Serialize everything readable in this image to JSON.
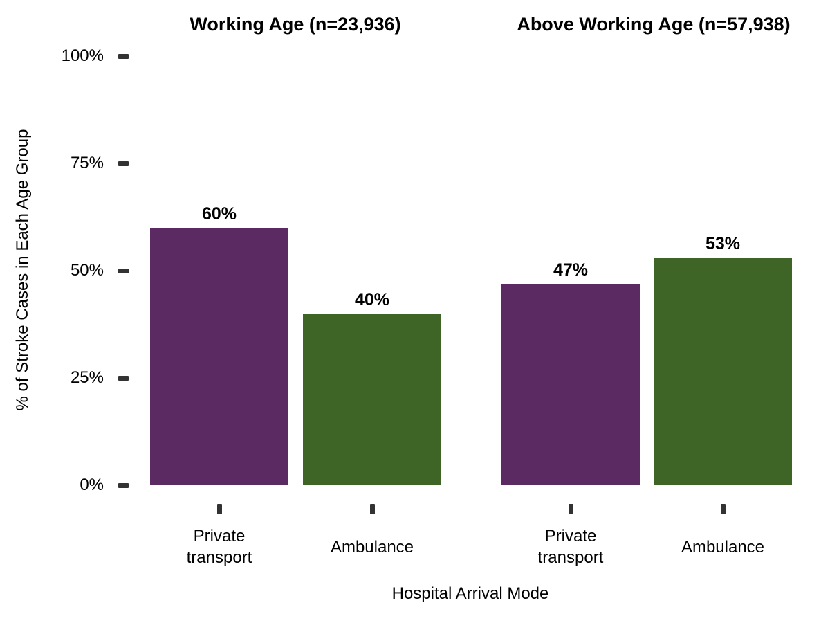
{
  "chart_data": {
    "type": "bar",
    "title": "",
    "xlabel": "Hospital Arrival Mode",
    "ylabel": "% of Stroke Cases in Each Age Group",
    "ylim": [
      0,
      100
    ],
    "grid": "off",
    "legend": "none",
    "yticks": {
      "values": [
        0,
        25,
        50,
        75,
        100
      ],
      "labels": [
        "0%",
        "25%",
        "50%",
        "75%",
        "100%"
      ]
    },
    "categories": [
      "Private transport",
      "Ambulance"
    ],
    "bar_colors": [
      "#5C2A63",
      "#3E6426"
    ],
    "tick_color": "#333333",
    "facets": [
      {
        "title": "Working Age (n=23,936)",
        "values": [
          60,
          40
        ],
        "value_labels": [
          "60%",
          "40%"
        ]
      },
      {
        "title": "Above Working Age (n=57,938)",
        "values": [
          47,
          53
        ],
        "value_labels": [
          "47%",
          "53%"
        ]
      }
    ]
  }
}
